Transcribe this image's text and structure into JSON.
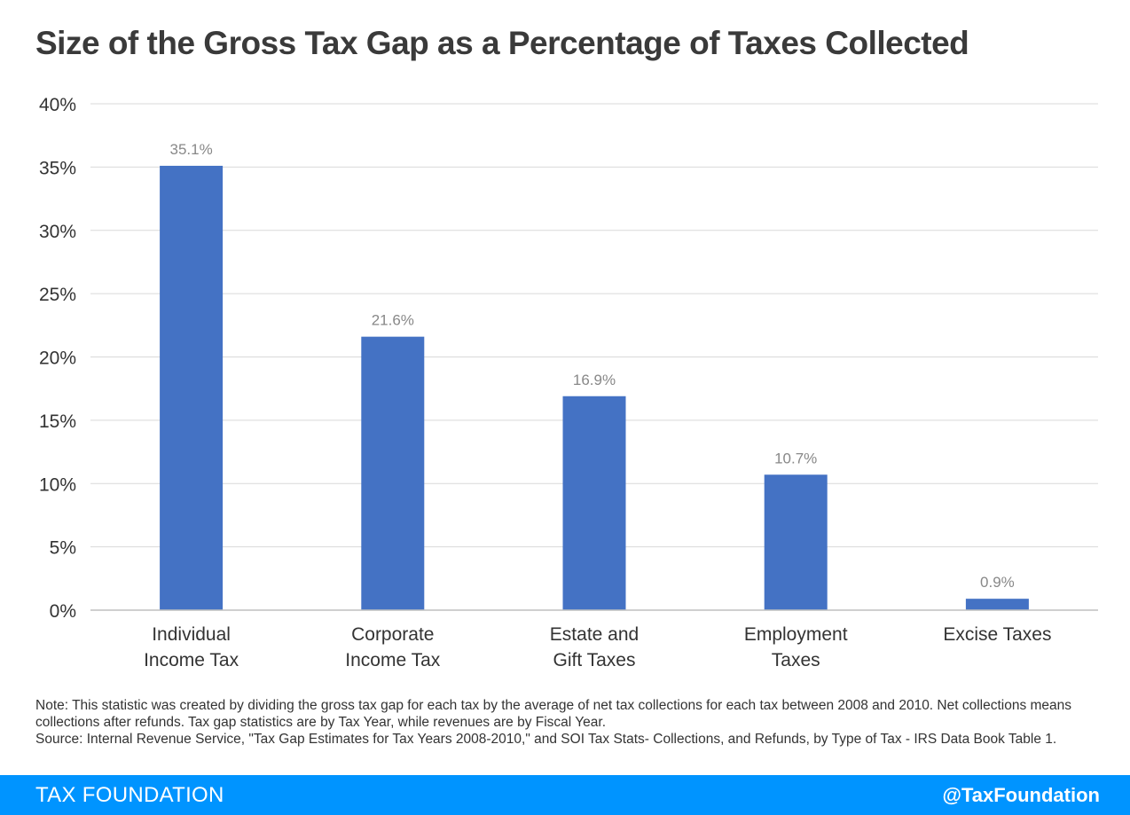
{
  "title": "Size of the Gross Tax Gap as a Percentage of Taxes Collected",
  "chart_data": {
    "type": "bar",
    "categories": [
      [
        "Individual",
        "Income Tax"
      ],
      [
        "Corporate",
        "Income Tax"
      ],
      [
        "Estate and",
        "Gift Taxes"
      ],
      [
        "Employment",
        "Taxes"
      ],
      [
        "Excise Taxes"
      ]
    ],
    "values": [
      35.1,
      21.6,
      16.9,
      10.7,
      0.9
    ],
    "data_labels": [
      "35.1%",
      "21.6%",
      "16.9%",
      "10.7%",
      "0.9%"
    ],
    "ylim": [
      0,
      40
    ],
    "yticks": [
      0,
      5,
      10,
      15,
      20,
      25,
      30,
      35,
      40
    ],
    "ytick_labels": [
      "0%",
      "5%",
      "10%",
      "15%",
      "20%",
      "25%",
      "30%",
      "35%",
      "40%"
    ],
    "grid": true,
    "bar_color": "#4472c4"
  },
  "note": "Note: This statistic was created by dividing the gross tax gap for each tax by the average of net tax collections for each tax between 2008 and 2010. Net collections means collections after refunds. Tax gap statistics are by Tax Year, while revenues are by Fiscal Year.",
  "source": "Source: Internal Revenue Service, \"Tax Gap Estimates for Tax Years 2008-2010,\" and SOI Tax Stats- Collections, and Refunds, by Type of Tax - IRS Data Book Table 1.",
  "footer": {
    "brand": "TAX FOUNDATION",
    "handle": "@TaxFoundation",
    "color": "#0094ff"
  }
}
